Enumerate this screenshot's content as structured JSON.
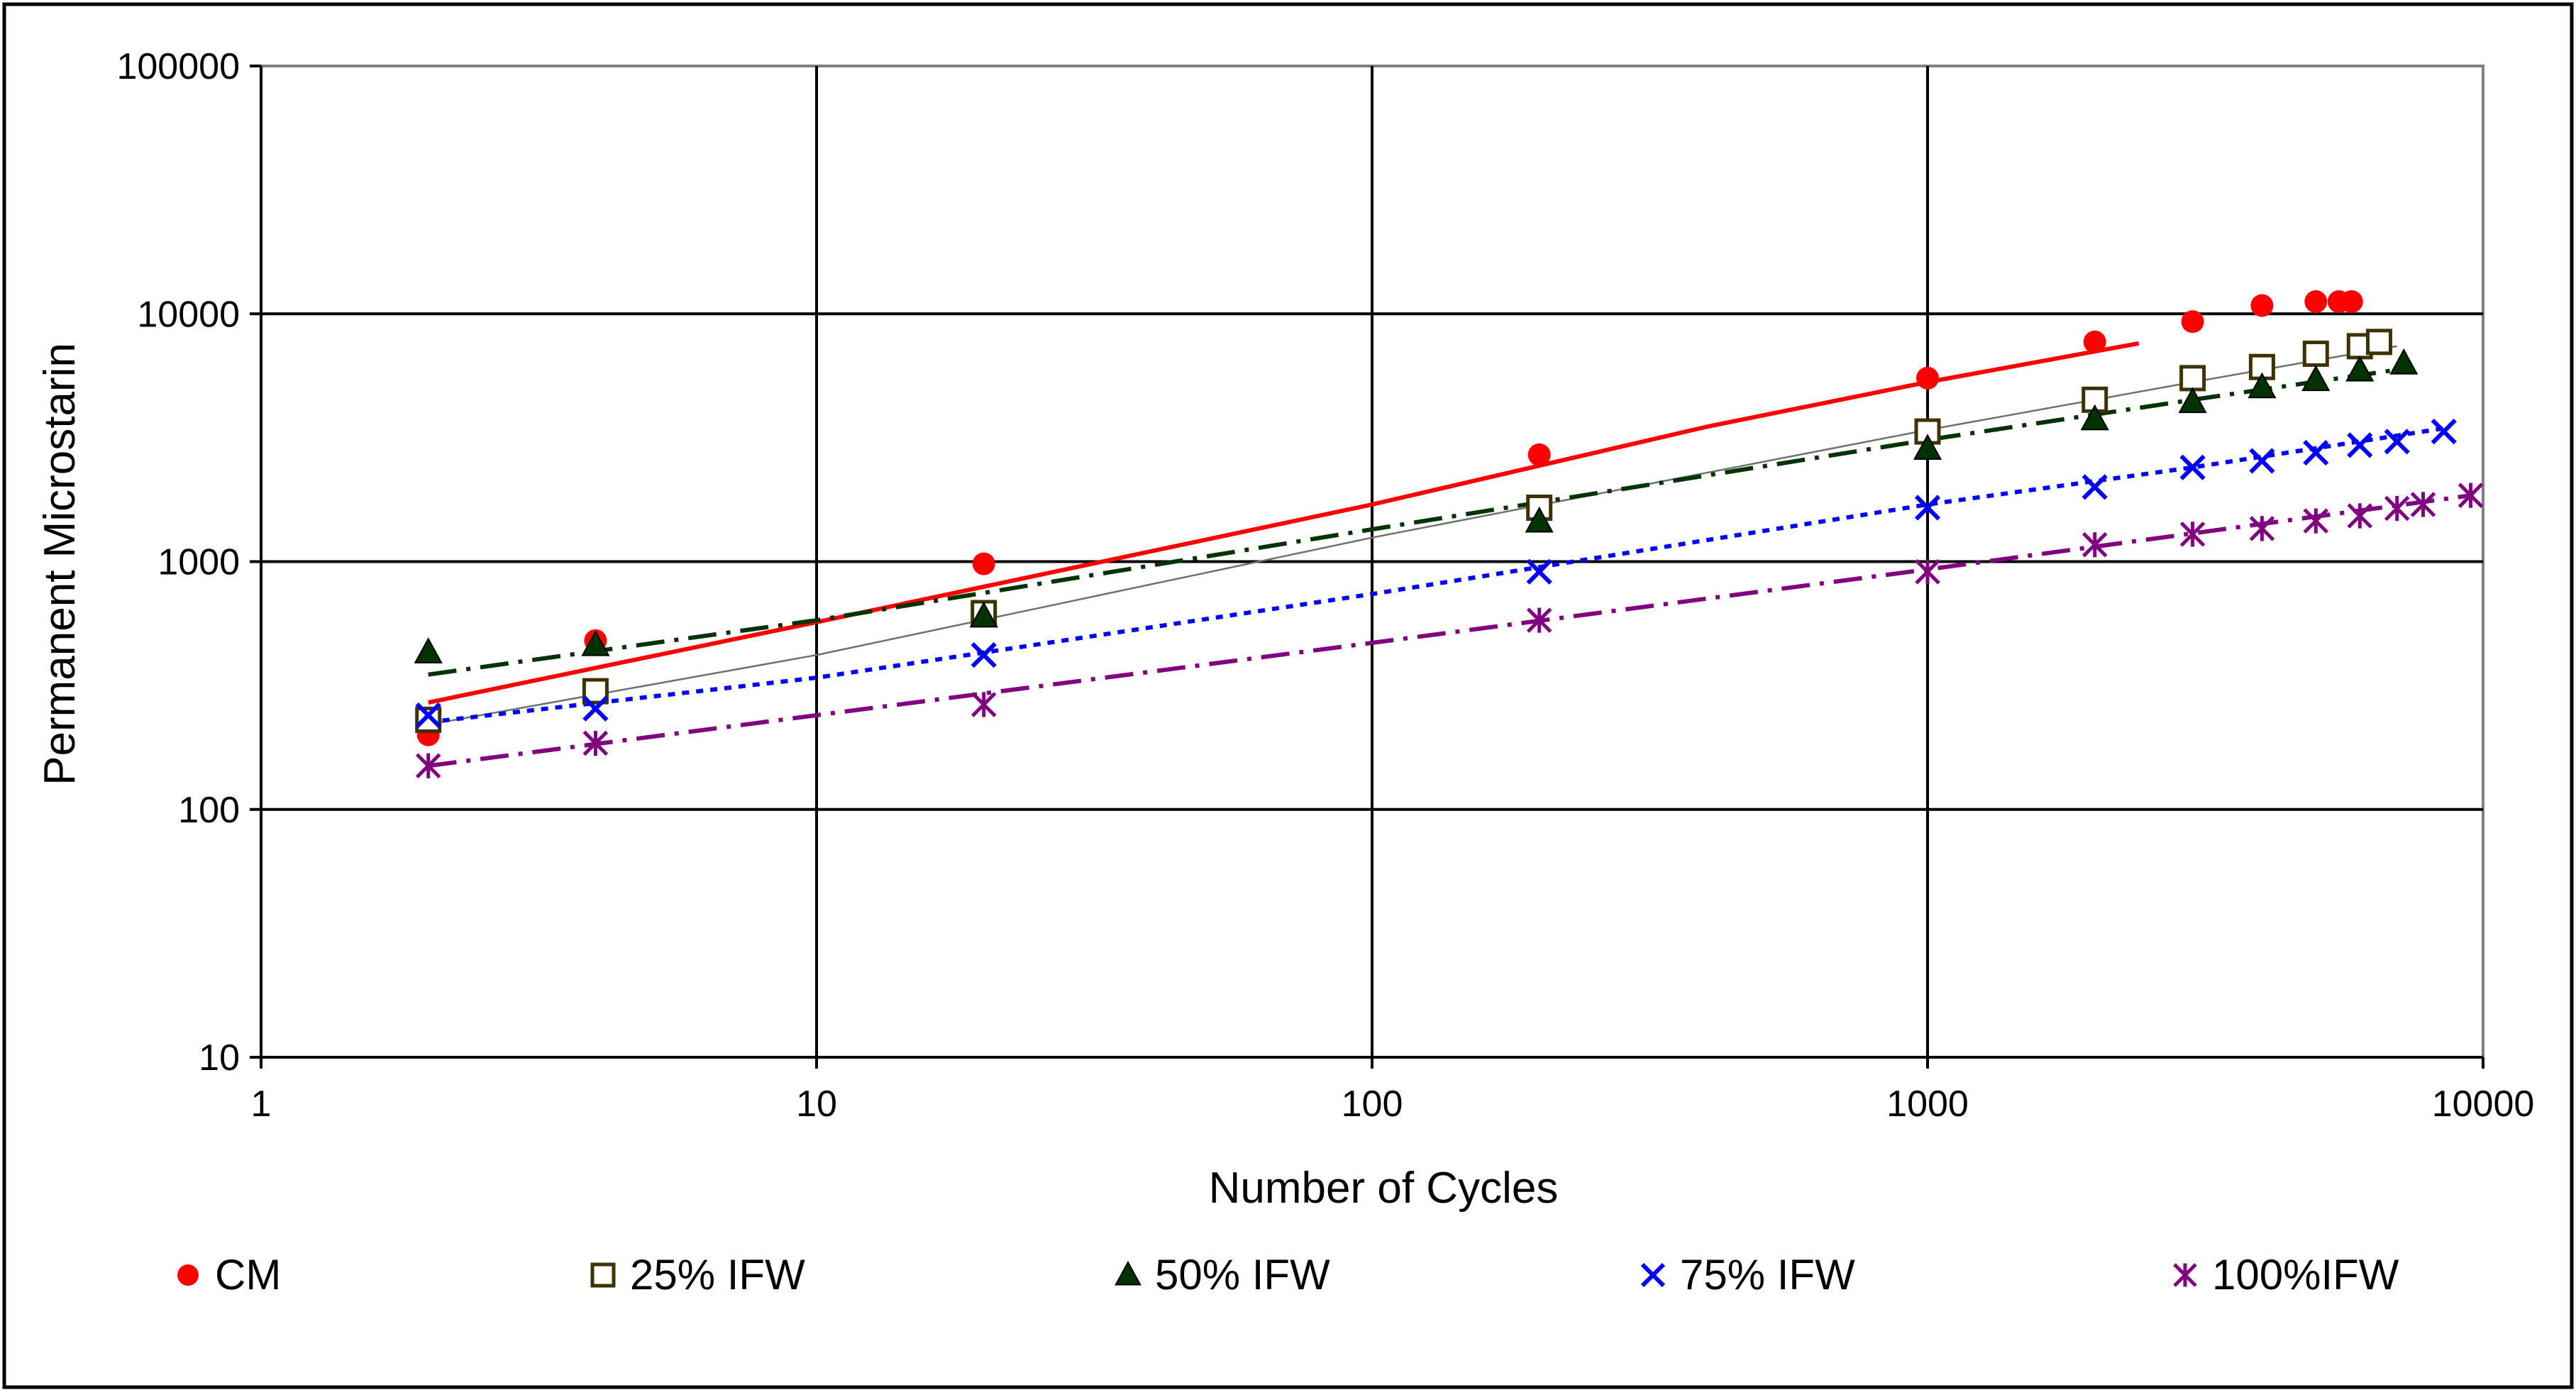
{
  "chart_data": {
    "type": "scatter",
    "x_scale": "log",
    "y_scale": "log",
    "xlabel": "Number of Cycles",
    "ylabel": "Permanent Microstarin",
    "xlim": [
      1,
      10000
    ],
    "ylim": [
      10,
      100000
    ],
    "x_ticks": [
      1,
      10,
      100,
      1000,
      10000
    ],
    "y_ticks": [
      10,
      100,
      1000,
      10000,
      100000
    ],
    "x_tick_labels": [
      "1",
      "10",
      "100",
      "1000",
      "10000"
    ],
    "y_tick_labels": [
      "10",
      "100",
      "1000",
      "10000",
      "100000"
    ],
    "grid": true,
    "legend_position": "bottom",
    "series": [
      {
        "name": "CM",
        "legend_label": "CM",
        "marker": "circle",
        "color": "#ff0000",
        "line_style": "solid",
        "points": [
          {
            "x": 2,
            "y": 200
          },
          {
            "x": 4,
            "y": 480
          },
          {
            "x": 20,
            "y": 980
          },
          {
            "x": 200,
            "y": 2700
          },
          {
            "x": 1000,
            "y": 5500
          },
          {
            "x": 2000,
            "y": 7700
          },
          {
            "x": 3000,
            "y": 9300
          },
          {
            "x": 4000,
            "y": 10800
          },
          {
            "x": 5000,
            "y": 11200
          },
          {
            "x": 5500,
            "y": 11200
          },
          {
            "x": 5800,
            "y": 11200
          }
        ],
        "trend": [
          {
            "x": 2,
            "y": 270
          },
          {
            "x": 10,
            "y": 570
          },
          {
            "x": 100,
            "y": 1700
          },
          {
            "x": 400,
            "y": 3500
          },
          {
            "x": 1000,
            "y": 5300
          },
          {
            "x": 2400,
            "y": 7600
          }
        ]
      },
      {
        "name": "25% IFW",
        "legend_label": "25% IFW",
        "marker": "square-open",
        "color": "#3d3300",
        "line_style": "thin-solid",
        "points": [
          {
            "x": 2,
            "y": 230
          },
          {
            "x": 4,
            "y": 300
          },
          {
            "x": 20,
            "y": 620
          },
          {
            "x": 200,
            "y": 1650
          },
          {
            "x": 1000,
            "y": 3350
          },
          {
            "x": 2000,
            "y": 4500
          },
          {
            "x": 3000,
            "y": 5500
          },
          {
            "x": 4000,
            "y": 6100
          },
          {
            "x": 5000,
            "y": 6900
          },
          {
            "x": 6000,
            "y": 7400
          },
          {
            "x": 6500,
            "y": 7700
          }
        ],
        "trend": [
          {
            "x": 2,
            "y": 220
          },
          {
            "x": 10,
            "y": 420
          },
          {
            "x": 100,
            "y": 1250
          },
          {
            "x": 1000,
            "y": 3400
          },
          {
            "x": 3000,
            "y": 5300
          },
          {
            "x": 7000,
            "y": 7400
          }
        ]
      },
      {
        "name": "50% IFW",
        "legend_label": "50% IFW",
        "marker": "triangle",
        "color": "#003300",
        "line_style": "dash-dot",
        "points": [
          {
            "x": 2,
            "y": 430
          },
          {
            "x": 4,
            "y": 460
          },
          {
            "x": 20,
            "y": 600
          },
          {
            "x": 200,
            "y": 1450
          },
          {
            "x": 1000,
            "y": 2850
          },
          {
            "x": 2000,
            "y": 3750
          },
          {
            "x": 3000,
            "y": 4400
          },
          {
            "x": 4000,
            "y": 5050
          },
          {
            "x": 5000,
            "y": 5400
          },
          {
            "x": 6000,
            "y": 5900
          },
          {
            "x": 7200,
            "y": 6300
          }
        ],
        "trend": [
          {
            "x": 2,
            "y": 350
          },
          {
            "x": 10,
            "y": 580
          },
          {
            "x": 100,
            "y": 1350
          },
          {
            "x": 1000,
            "y": 3100
          },
          {
            "x": 3000,
            "y": 4500
          },
          {
            "x": 7200,
            "y": 6000
          }
        ]
      },
      {
        "name": "75% IFW",
        "legend_label": "75% IFW",
        "marker": "x",
        "color": "#0000ff",
        "line_style": "dotted",
        "points": [
          {
            "x": 2,
            "y": 240
          },
          {
            "x": 4,
            "y": 255
          },
          {
            "x": 20,
            "y": 420
          },
          {
            "x": 200,
            "y": 910
          },
          {
            "x": 1000,
            "y": 1650
          },
          {
            "x": 2000,
            "y": 2000
          },
          {
            "x": 3000,
            "y": 2400
          },
          {
            "x": 4000,
            "y": 2550
          },
          {
            "x": 5000,
            "y": 2750
          },
          {
            "x": 6000,
            "y": 2950
          },
          {
            "x": 7000,
            "y": 3050
          },
          {
            "x": 8500,
            "y": 3350
          }
        ],
        "trend": [
          {
            "x": 2,
            "y": 225
          },
          {
            "x": 10,
            "y": 340
          },
          {
            "x": 100,
            "y": 740
          },
          {
            "x": 1000,
            "y": 1700
          },
          {
            "x": 3000,
            "y": 2400
          },
          {
            "x": 8500,
            "y": 3450
          }
        ]
      },
      {
        "name": "100%IFW",
        "legend_label": "100%IFW",
        "marker": "asterisk",
        "color": "#800080",
        "line_style": "dash-dot",
        "points": [
          {
            "x": 2,
            "y": 150
          },
          {
            "x": 4,
            "y": 185
          },
          {
            "x": 20,
            "y": 265
          },
          {
            "x": 200,
            "y": 580
          },
          {
            "x": 1000,
            "y": 910
          },
          {
            "x": 2000,
            "y": 1170
          },
          {
            "x": 3000,
            "y": 1290
          },
          {
            "x": 4000,
            "y": 1360
          },
          {
            "x": 5000,
            "y": 1460
          },
          {
            "x": 6000,
            "y": 1530
          },
          {
            "x": 7000,
            "y": 1640
          },
          {
            "x": 7800,
            "y": 1700
          },
          {
            "x": 9500,
            "y": 1850
          }
        ],
        "trend": [
          {
            "x": 2,
            "y": 150
          },
          {
            "x": 10,
            "y": 240
          },
          {
            "x": 100,
            "y": 470
          },
          {
            "x": 1000,
            "y": 930
          },
          {
            "x": 3000,
            "y": 1300
          },
          {
            "x": 9500,
            "y": 1850
          }
        ]
      }
    ]
  }
}
